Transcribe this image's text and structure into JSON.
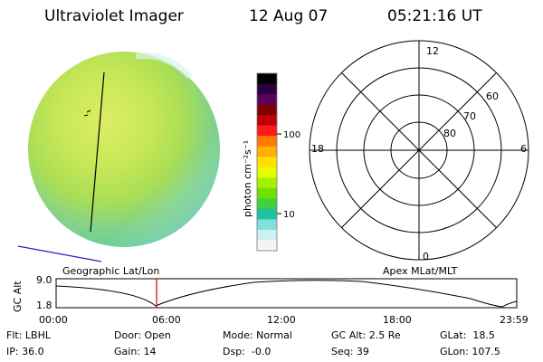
{
  "header": {
    "title": "Ultraviolet Imager",
    "date": "12 Aug 07",
    "time": "05:21:16 UT"
  },
  "colorbar": {
    "unit_label": "photon cm⁻²s⁻¹",
    "tick_100": "100",
    "tick_10": "10",
    "colors": [
      "#000000",
      "#2b0040",
      "#5a005a",
      "#800000",
      "#c0000a",
      "#ff1a1a",
      "#ff7a00",
      "#ffb000",
      "#ffe000",
      "#e6ff00",
      "#a8f000",
      "#70e000",
      "#40d040",
      "#20c0a0",
      "#80e0e0",
      "#d0f0f0",
      "#f4f4f4"
    ]
  },
  "polar_plot": {
    "label_12": "12",
    "label_18": "18",
    "label_6": "6",
    "label_0": "0",
    "ring_60": "60",
    "ring_70": "70",
    "ring_80": "80"
  },
  "timeline": {
    "left_label": "Geographic Lat/Lon",
    "right_label": "Apex MLat/MLT",
    "axis_label": "GC Alt",
    "y_top": "9.0",
    "y_bottom": "1.8",
    "ticks": [
      "00:00",
      "06:00",
      "12:00",
      "18:00",
      "23:59"
    ],
    "marker_color": "#d00000"
  },
  "info": {
    "filter": "Flt: LBHL",
    "ip": "IP: 36.0",
    "door": "Door: Open",
    "gain": "Gain: 14",
    "mode": "Mode: Normal",
    "dsp": "Dsp:  -0.0",
    "gc_alt": "GC Alt: 2.5 Re",
    "seq": "Seq: 39",
    "glat": "GLat:  18.5",
    "glon": "GLon: 107.5"
  }
}
